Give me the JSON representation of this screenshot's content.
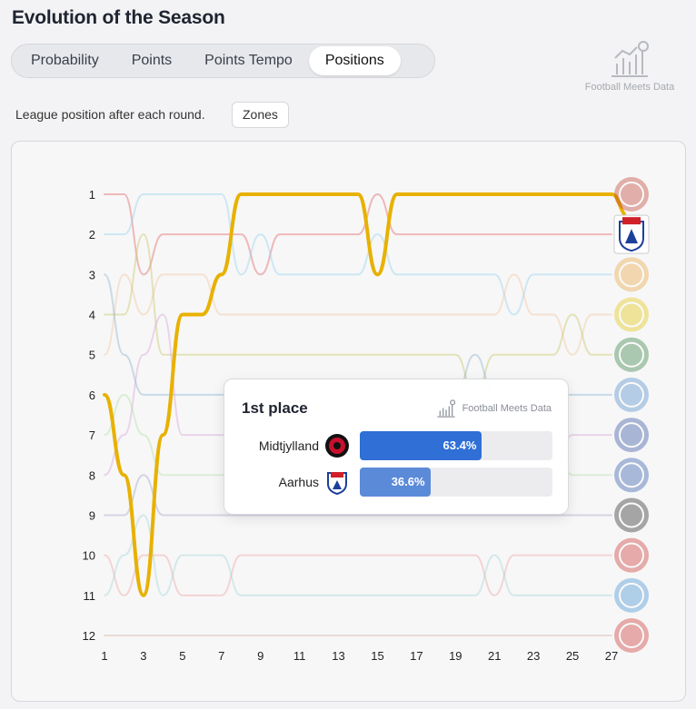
{
  "header": {
    "title": "Evolution of the Season"
  },
  "tabs": [
    {
      "label": "Probability",
      "active": false
    },
    {
      "label": "Points",
      "active": false
    },
    {
      "label": "Points Tempo",
      "active": false
    },
    {
      "label": "Positions",
      "active": true
    }
  ],
  "brand": {
    "text": "Football Meets Data"
  },
  "subtitle": "League position after each round.",
  "zones_button": "Zones",
  "chart_data": {
    "type": "line",
    "title": "",
    "xlabel": "",
    "ylabel": "",
    "x_ticks": [
      1,
      3,
      5,
      7,
      9,
      11,
      13,
      15,
      17,
      19,
      21,
      23,
      25,
      27
    ],
    "y_ticks": [
      1,
      2,
      3,
      4,
      5,
      6,
      7,
      8,
      9,
      10,
      11,
      12
    ],
    "xlim": [
      1,
      27
    ],
    "ylim": [
      12,
      1
    ],
    "y_inverted": true,
    "grid": false,
    "highlight_color": "#e8b100",
    "series": [
      {
        "x": [
          1,
          2,
          3,
          4,
          5,
          6,
          7,
          8,
          9,
          10,
          11,
          12,
          13,
          14,
          15,
          16,
          17,
          18,
          19,
          20,
          21,
          22,
          23,
          24,
          25,
          26,
          27
        ],
        "y": [
          6,
          8,
          11,
          7,
          4,
          4,
          3,
          1,
          1,
          1,
          1,
          1,
          1,
          1,
          3,
          1,
          1,
          1,
          1,
          1,
          1,
          1,
          1,
          1,
          1,
          1,
          1
        ],
        "color": "#e8b100",
        "highlight": true
      },
      {
        "x": [
          1,
          2,
          3,
          4,
          5,
          6,
          7,
          8,
          9,
          10,
          11,
          12,
          13,
          14,
          15,
          16,
          17,
          18,
          19,
          20,
          21,
          22,
          23,
          24,
          25,
          26,
          27
        ],
        "y": [
          1,
          1,
          3,
          2,
          2,
          2,
          2,
          2,
          3,
          2,
          2,
          2,
          2,
          2,
          1,
          2,
          2,
          2,
          2,
          2,
          2,
          2,
          2,
          2,
          2,
          2,
          2
        ],
        "color": "#e26a6a"
      },
      {
        "x": [
          1,
          2,
          3,
          4,
          5,
          6,
          7,
          8,
          9,
          10,
          11,
          12,
          13,
          14,
          15,
          16,
          17,
          18,
          19,
          20,
          21,
          22,
          23,
          24,
          25,
          26,
          27
        ],
        "y": [
          2,
          2,
          1,
          1,
          1,
          1,
          1,
          3,
          2,
          3,
          3,
          3,
          3,
          3,
          2,
          3,
          3,
          3,
          3,
          3,
          3,
          4,
          3,
          3,
          3,
          3,
          3
        ],
        "color": "#9ad3ee"
      },
      {
        "x": [
          1,
          2,
          3,
          4,
          5,
          6,
          7,
          8,
          9,
          10,
          11,
          12,
          13,
          14,
          15,
          16,
          17,
          18,
          19,
          20,
          21,
          22,
          23,
          24,
          25,
          26,
          27
        ],
        "y": [
          5,
          3,
          4,
          3,
          3,
          3,
          4,
          4,
          4,
          4,
          4,
          4,
          4,
          4,
          4,
          4,
          4,
          4,
          4,
          4,
          4,
          3,
          4,
          4,
          5,
          4,
          4
        ],
        "color": "#f2c7a0"
      },
      {
        "x": [
          1,
          2,
          3,
          4,
          5,
          6,
          7,
          8,
          9,
          10,
          11,
          12,
          13,
          14,
          15,
          16,
          17,
          18,
          19,
          20,
          21,
          22,
          23,
          24,
          25,
          26,
          27
        ],
        "y": [
          4,
          4,
          2,
          5,
          5,
          5,
          5,
          5,
          5,
          5,
          5,
          5,
          5,
          5,
          5,
          5,
          5,
          5,
          5,
          6,
          5,
          5,
          5,
          5,
          4,
          5,
          5
        ],
        "color": "#c8c86a"
      },
      {
        "x": [
          1,
          2,
          3,
          4,
          5,
          6,
          7,
          8,
          9,
          10,
          11,
          12,
          13,
          14,
          15,
          16,
          17,
          18,
          19,
          20,
          21,
          22,
          23,
          24,
          25,
          26,
          27
        ],
        "y": [
          3,
          5,
          6,
          6,
          6,
          6,
          6,
          6,
          6,
          6,
          6,
          6,
          6,
          6,
          6,
          6,
          6,
          6,
          6,
          5,
          6,
          6,
          6,
          6,
          6,
          6,
          6
        ],
        "color": "#8fb5cf"
      },
      {
        "x": [
          1,
          2,
          3,
          4,
          5,
          6,
          7,
          8,
          9,
          10,
          11,
          12,
          13,
          14,
          15,
          16,
          17,
          18,
          19,
          20,
          21,
          22,
          23,
          24,
          25,
          26,
          27
        ],
        "y": [
          8,
          7,
          5,
          4,
          7,
          7,
          7,
          7,
          7,
          7,
          7,
          7,
          7,
          7,
          7,
          7,
          7,
          7,
          7,
          7,
          7,
          7,
          7,
          8,
          7,
          7,
          7
        ],
        "color": "#d9a8d4"
      },
      {
        "x": [
          1,
          2,
          3,
          4,
          5,
          6,
          7,
          8,
          9,
          10,
          11,
          12,
          13,
          14,
          15,
          16,
          17,
          18,
          19,
          20,
          21,
          22,
          23,
          24,
          25,
          26,
          27
        ],
        "y": [
          7,
          6,
          7,
          8,
          8,
          8,
          8,
          8,
          8,
          8,
          8,
          8,
          8,
          8,
          8,
          8,
          8,
          8,
          8,
          8,
          8,
          8,
          8,
          7,
          8,
          8,
          8
        ],
        "color": "#b8e0a8"
      },
      {
        "x": [
          1,
          2,
          3,
          4,
          5,
          6,
          7,
          8,
          9,
          10,
          11,
          12,
          13,
          14,
          15,
          16,
          17,
          18,
          19,
          20,
          21,
          22,
          23,
          24,
          25,
          26,
          27
        ],
        "y": [
          9,
          9,
          8,
          9,
          9,
          9,
          9,
          9,
          9,
          9,
          9,
          9,
          9,
          9,
          9,
          9,
          9,
          9,
          9,
          9,
          9,
          9,
          9,
          9,
          9,
          9,
          9
        ],
        "color": "#a8a8c8"
      },
      {
        "x": [
          1,
          2,
          3,
          4,
          5,
          6,
          7,
          8,
          9,
          10,
          11,
          12,
          13,
          14,
          15,
          16,
          17,
          18,
          19,
          20,
          21,
          22,
          23,
          24,
          25,
          26,
          27
        ],
        "y": [
          10,
          11,
          10,
          10,
          11,
          11,
          11,
          10,
          10,
          10,
          10,
          10,
          10,
          10,
          10,
          10,
          10,
          10,
          10,
          10,
          11,
          10,
          10,
          10,
          10,
          10,
          10
        ],
        "color": "#f0a8a8"
      },
      {
        "x": [
          1,
          2,
          3,
          4,
          5,
          6,
          7,
          8,
          9,
          10,
          11,
          12,
          13,
          14,
          15,
          16,
          17,
          18,
          19,
          20,
          21,
          22,
          23,
          24,
          25,
          26,
          27
        ],
        "y": [
          11,
          10,
          9,
          11,
          10,
          10,
          10,
          11,
          11,
          11,
          11,
          11,
          11,
          11,
          11,
          11,
          11,
          11,
          11,
          11,
          10,
          11,
          11,
          11,
          11,
          11,
          11
        ],
        "color": "#a8d8d8"
      },
      {
        "x": [
          1,
          2,
          3,
          4,
          5,
          6,
          7,
          8,
          9,
          10,
          11,
          12,
          13,
          14,
          15,
          16,
          17,
          18,
          19,
          20,
          21,
          22,
          23,
          24,
          25,
          26,
          27
        ],
        "y": [
          12,
          12,
          12,
          12,
          12,
          12,
          12,
          12,
          12,
          12,
          12,
          12,
          12,
          12,
          12,
          12,
          12,
          12,
          12,
          12,
          12,
          12,
          12,
          12,
          12,
          12,
          12
        ],
        "color": "#d8b8a8"
      }
    ],
    "team_badges": [
      {
        "name": "badge-1",
        "color": "#c0392b"
      },
      {
        "name": "badge-2",
        "color": "#1c3f9a"
      },
      {
        "name": "badge-3",
        "color": "#e8a23a"
      },
      {
        "name": "badge-4",
        "color": "#e0c400"
      },
      {
        "name": "badge-5",
        "color": "#2f7a3a"
      },
      {
        "name": "badge-6",
        "color": "#4a88c8"
      },
      {
        "name": "badge-7",
        "color": "#2a4c9a"
      },
      {
        "name": "badge-8",
        "color": "#2a55a8"
      },
      {
        "name": "badge-9",
        "color": "#222222"
      },
      {
        "name": "badge-10",
        "color": "#c8302a"
      },
      {
        "name": "badge-11",
        "color": "#3b8ed0"
      },
      {
        "name": "badge-12",
        "color": "#c8302a"
      }
    ],
    "tooltip": {
      "title": "1st place",
      "brand": "Football Meets Data",
      "rows": [
        {
          "team": "Midtjylland",
          "value": 63.4,
          "label": "63.4%",
          "color": "#2f6fd6",
          "logo_color": "#c8102e"
        },
        {
          "team": "Aarhus",
          "value": 36.6,
          "label": "36.6%",
          "color": "#5b8ad9",
          "logo_color": "#1c3f9a"
        }
      ]
    }
  }
}
